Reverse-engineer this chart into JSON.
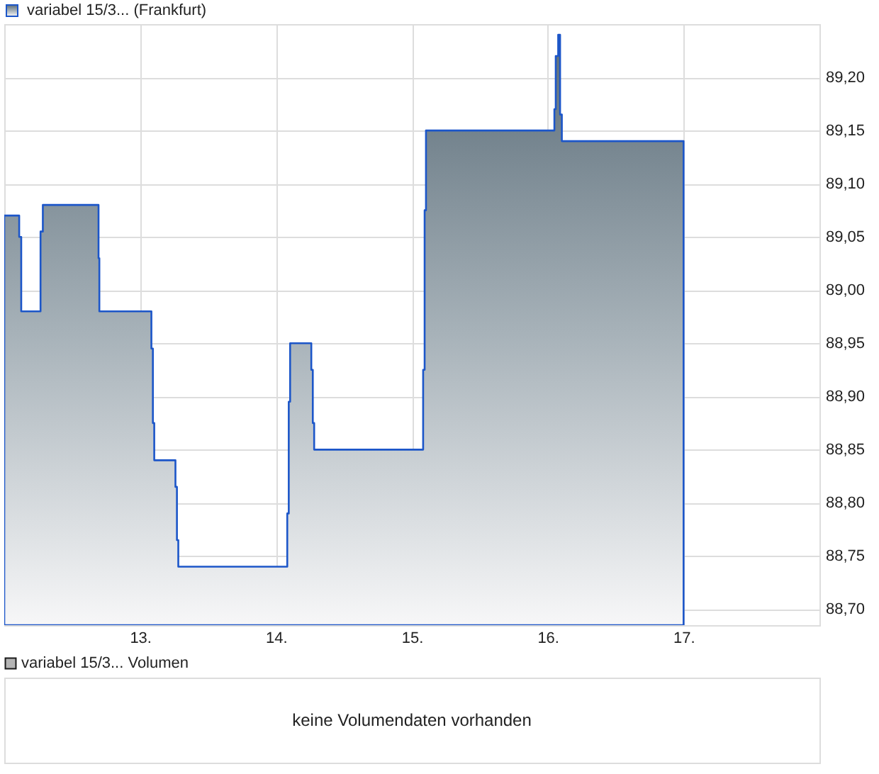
{
  "chart_data": [
    {
      "type": "area",
      "x": [
        12.0,
        12.11,
        12.125,
        12.267,
        12.284,
        12.694,
        12.7,
        13.083,
        13.094,
        13.104,
        13.26,
        13.271,
        13.281,
        14.083,
        14.094,
        14.104,
        14.26,
        14.271,
        14.281,
        15.083,
        15.094,
        15.104,
        16.049,
        16.059,
        16.077,
        16.091,
        16.104,
        17.0
      ],
      "series": [
        {
          "name": "variabel 15/3... (Frankfurt)",
          "color": "#1c56c9",
          "values": [
            89.07,
            89.05,
            88.98,
            89.055,
            89.08,
            89.03,
            88.98,
            88.945,
            88.875,
            88.84,
            88.815,
            88.765,
            88.74,
            88.79,
            88.895,
            88.95,
            88.925,
            88.875,
            88.85,
            88.925,
            89.075,
            89.15,
            89.17,
            89.22,
            89.24,
            89.165,
            89.14,
            89.14
          ]
        }
      ],
      "xlim": [
        12,
        18
      ],
      "xticks": [
        {
          "value": 13,
          "label": "13."
        },
        {
          "value": 14,
          "label": "14."
        },
        {
          "value": 15,
          "label": "15."
        },
        {
          "value": 16,
          "label": "16."
        },
        {
          "value": 17,
          "label": "17."
        }
      ],
      "ylim": [
        88.685,
        89.25
      ],
      "yticks": [
        {
          "value": 88.7,
          "label": "88,70"
        },
        {
          "value": 88.75,
          "label": "88,75"
        },
        {
          "value": 88.8,
          "label": "88,80"
        },
        {
          "value": 88.85,
          "label": "88,85"
        },
        {
          "value": 88.9,
          "label": "88,90"
        },
        {
          "value": 88.95,
          "label": "88,95"
        },
        {
          "value": 89.0,
          "label": "89,00"
        },
        {
          "value": 89.05,
          "label": "89,05"
        },
        {
          "value": 89.1,
          "label": "89,10"
        },
        {
          "value": 89.15,
          "label": "89,15"
        },
        {
          "value": 89.2,
          "label": "89,20"
        }
      ],
      "grid": true,
      "legend": "top left"
    },
    {
      "type": "other",
      "series": [
        {
          "name": "variabel 15/3... Volumen",
          "color": "#b4b4b4"
        }
      ],
      "legend": "top left",
      "annotations": [
        "keine Volumendaten vorhanden"
      ]
    }
  ]
}
